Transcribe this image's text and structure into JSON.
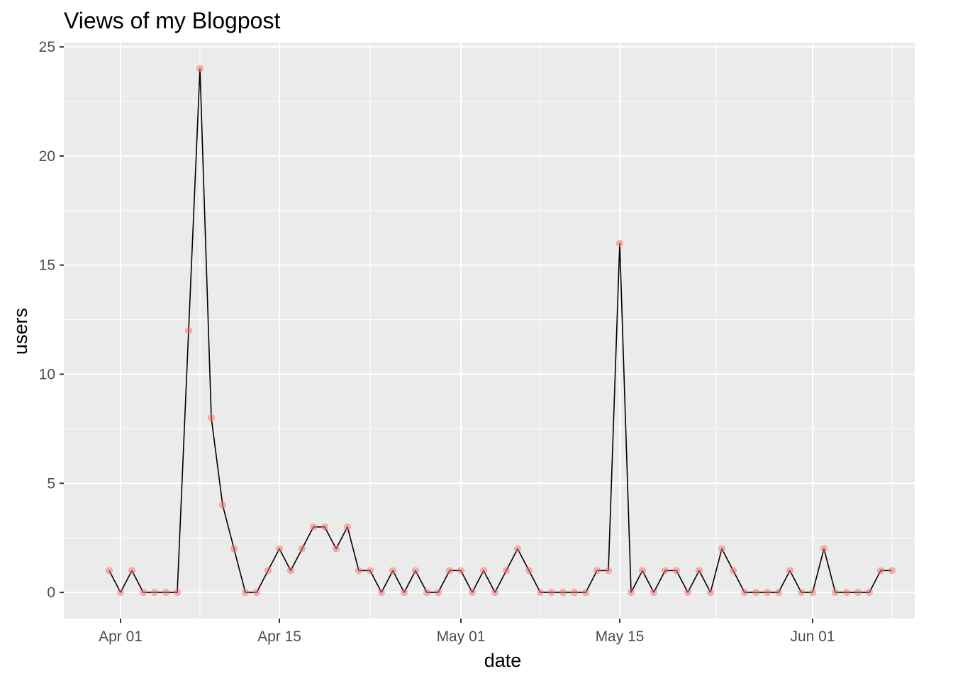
{
  "chart_data": {
    "type": "line",
    "title": "Views of my Blogpost",
    "xlabel": "date",
    "ylabel": "users",
    "x_ticks": [
      "Apr 01",
      "Apr 15",
      "May 01",
      "May 15",
      "Jun 01"
    ],
    "x_tick_dates": [
      "2019-04-01",
      "2019-04-15",
      "2019-05-01",
      "2019-05-15",
      "2019-06-01"
    ],
    "x_range": [
      "2019-03-27",
      "2019-06-10"
    ],
    "y_ticks": [
      "0",
      "5",
      "10",
      "15",
      "20",
      "25"
    ],
    "ylim": [
      -1.2,
      25.2
    ],
    "grid": true,
    "legend": "none",
    "colors": {
      "panel": "#ebebeb",
      "grid": "#ffffff",
      "line": "#000000",
      "points": "#f8766d"
    },
    "series": [
      {
        "x": [
          "2019-03-31",
          "2019-04-01",
          "2019-04-02",
          "2019-04-03",
          "2019-04-04",
          "2019-04-05",
          "2019-04-06",
          "2019-04-07",
          "2019-04-08",
          "2019-04-09",
          "2019-04-10",
          "2019-04-11",
          "2019-04-12",
          "2019-04-13",
          "2019-04-14",
          "2019-04-15",
          "2019-04-16",
          "2019-04-17",
          "2019-04-18",
          "2019-04-19",
          "2019-04-20",
          "2019-04-21",
          "2019-04-22",
          "2019-04-23",
          "2019-04-24",
          "2019-04-25",
          "2019-04-26",
          "2019-04-27",
          "2019-04-28",
          "2019-04-29",
          "2019-04-30",
          "2019-05-01",
          "2019-05-02",
          "2019-05-03",
          "2019-05-04",
          "2019-05-05",
          "2019-05-06",
          "2019-05-07",
          "2019-05-08",
          "2019-05-09",
          "2019-05-10",
          "2019-05-11",
          "2019-05-12",
          "2019-05-13",
          "2019-05-14",
          "2019-05-15",
          "2019-05-16",
          "2019-05-17",
          "2019-05-18",
          "2019-05-19",
          "2019-05-20",
          "2019-05-21",
          "2019-05-22",
          "2019-05-23",
          "2019-05-24",
          "2019-05-25",
          "2019-05-26",
          "2019-05-27",
          "2019-05-28",
          "2019-05-29",
          "2019-05-30",
          "2019-05-31",
          "2019-06-01",
          "2019-06-02",
          "2019-06-03",
          "2019-06-04",
          "2019-06-05",
          "2019-06-06",
          "2019-06-07",
          "2019-06-08"
        ],
        "y": [
          1,
          0,
          1,
          0,
          0,
          0,
          0,
          12,
          24,
          8,
          4,
          2,
          0,
          0,
          1,
          2,
          1,
          2,
          3,
          3,
          2,
          3,
          1,
          1,
          0,
          1,
          0,
          1,
          0,
          0,
          1,
          1,
          0,
          1,
          0,
          1,
          2,
          1,
          0,
          0,
          0,
          0,
          0,
          1,
          1,
          16,
          0,
          1,
          0,
          1,
          1,
          0,
          1,
          0,
          2,
          1,
          0,
          0,
          0,
          0,
          1,
          0,
          0,
          2,
          0,
          0,
          0,
          0,
          1,
          1
        ]
      }
    ]
  }
}
